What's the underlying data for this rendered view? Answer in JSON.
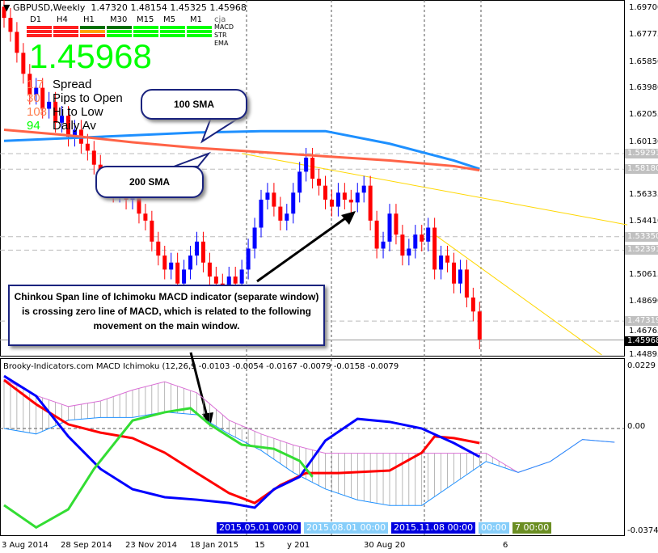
{
  "header": {
    "symbol": "GBPUSD,Weekly",
    "ohlc": "1.47320 1.48154 1.45325 1.45968"
  },
  "panel": {
    "timeframes": [
      "D1",
      "H4",
      "H1",
      "M30",
      "M15",
      "M5",
      "M1"
    ],
    "tag": "cja",
    "rows": [
      {
        "label": "MACD",
        "colors": [
          "#ff2020",
          "#ff2020",
          "#007000",
          "#007000",
          "#00ff00",
          "#00ff00",
          "#00ff00"
        ]
      },
      {
        "label": "STR",
        "colors": [
          "#ff2020",
          "#ff2020",
          "#ffa500",
          "#00ff00",
          "#00ff00",
          "#00ff00",
          "#00ff00"
        ]
      },
      {
        "label": "EMA",
        "colors": [
          "#ff2020",
          "#ff2020",
          "#ff2020",
          "#00ff00",
          "#00ff00",
          "#00ff00",
          "#00ff00"
        ]
      }
    ],
    "price": "1.45968",
    "stats": [
      {
        "value": "1.7",
        "label": "Spread",
        "color": "#ff7f50"
      },
      {
        "value": "30",
        "label": "Pips to Open",
        "color": "#ff7f50"
      },
      {
        "value": "108",
        "label": "Hi to Low",
        "color": "#ff7f50"
      },
      {
        "value": "94",
        "label": "Daily Av",
        "color": "#00ff00"
      }
    ]
  },
  "callouts": {
    "sma100": "100 SMA",
    "sma200": "200 SMA",
    "note": "Chinkou Span line of Ichimoku MACD indicator (separate window) is crossing zero line of MACD, which is related to the following movement on the main window."
  },
  "price_axis": [
    "1.69700",
    "1.67775",
    "1.65850",
    "1.63980",
    "1.62055",
    "1.60130",
    "1.56335",
    "1.54410",
    "1.50615",
    "1.48690",
    "1.46765",
    "1.44895"
  ],
  "price_levels": [
    {
      "label": "1.59291",
      "value": 1.59291
    },
    {
      "label": "1.58180",
      "value": 1.5818
    },
    {
      "label": "1.53350",
      "value": 1.5335
    },
    {
      "label": "1.52391",
      "value": 1.52391
    },
    {
      "label": "1.47319",
      "value": 1.47319
    },
    {
      "label": "1.45968",
      "value": 1.45968,
      "current": true
    }
  ],
  "indicator": {
    "title": "Brooky-Indicators.com MACD Ichimoku (12,26,9 -0.0103 -0.0054 -0.0167 -0.0079 -0.0158 -0.0079",
    "axis": [
      "0.0229",
      "0.00",
      "-0.0374"
    ]
  },
  "time_axis": [
    "3 Aug 2014",
    "28 Sep 2014",
    "23 Nov 2014",
    "18 Jan 2015",
    "15",
    "y 201",
    "30 Aug 20",
    "6"
  ],
  "time_highlights": [
    {
      "label": "2015.05.01 00:00",
      "color": "#0000e0"
    },
    {
      "label": "2015.08.01 00:00",
      "color": "#87cefa"
    },
    {
      "label": "2015.11.08 00:00",
      "color": "#0000e0"
    },
    {
      "label": "00:00",
      "color": "#87cefa"
    },
    {
      "label": "7 00:00",
      "color": "#6b8e23"
    }
  ],
  "colors": {
    "bull": "#0000ff",
    "bear": "#ff0000",
    "sma100": "#1e90ff",
    "sma200": "#ff6347",
    "trend": "#ffd700"
  },
  "chart_data": {
    "closes": [
      1.69,
      1.68,
      1.665,
      1.65,
      1.635,
      1.64,
      1.625,
      1.63,
      1.615,
      1.62,
      1.605,
      1.61,
      1.6,
      1.595,
      1.585,
      1.575,
      1.57,
      1.565,
      1.568,
      1.56,
      1.562,
      1.55,
      1.545,
      1.53,
      1.52,
      1.51,
      1.515,
      1.5,
      1.51,
      1.52,
      1.53,
      1.515,
      1.505,
      1.5,
      1.495,
      1.505,
      1.5,
      1.51,
      1.525,
      1.54,
      1.56,
      1.565,
      1.555,
      1.545,
      1.55,
      1.565,
      1.58,
      1.59,
      1.575,
      1.57,
      1.56,
      1.555,
      1.565,
      1.56,
      1.558,
      1.565,
      1.57,
      1.545,
      1.525,
      1.53,
      1.55,
      1.535,
      1.52,
      1.525,
      1.535,
      1.53,
      1.54,
      1.51,
      1.52,
      1.515,
      1.5,
      1.51,
      1.49,
      1.48,
      1.46
    ],
    "sma200": [
      [
        0,
        1.61
      ],
      [
        10,
        1.606
      ],
      [
        20,
        1.601
      ],
      [
        30,
        1.597
      ],
      [
        40,
        1.594
      ],
      [
        50,
        1.591
      ],
      [
        60,
        1.588
      ],
      [
        70,
        1.584
      ],
      [
        74,
        1.581
      ]
    ],
    "sma100": [
      [
        0,
        1.602
      ],
      [
        10,
        1.604
      ],
      [
        20,
        1.606
      ],
      [
        30,
        1.608
      ],
      [
        40,
        1.609
      ],
      [
        50,
        1.609
      ],
      [
        60,
        1.6
      ],
      [
        70,
        1.588
      ],
      [
        74,
        1.582
      ]
    ],
    "trendlines": [
      [
        [
          37,
          1.593
        ],
        [
          97,
          1.542
        ]
      ],
      [
        [
          67,
          1.535
        ],
        [
          93,
          1.449
        ]
      ]
    ],
    "macd_blue": [
      [
        0,
        0.0191
      ],
      [
        5,
        0.0118
      ],
      [
        10,
        -0.0029
      ],
      [
        15,
        -0.0147
      ],
      [
        20,
        -0.0221
      ],
      [
        25,
        -0.025
      ],
      [
        30,
        -0.0259
      ],
      [
        35,
        -0.0271
      ],
      [
        39,
        -0.0288
      ],
      [
        42,
        -0.0221
      ],
      [
        46,
        -0.0176
      ],
      [
        50,
        -0.0044
      ],
      [
        55,
        0.0035
      ],
      [
        60,
        0.0024
      ],
      [
        65,
        0
      ],
      [
        70,
        -0.0053
      ],
      [
        74,
        -0.0103
      ]
    ],
    "macd_red": [
      [
        0,
        0.0176
      ],
      [
        5,
        0.0088
      ],
      [
        10,
        0.0015
      ],
      [
        15,
        -0.0015
      ],
      [
        20,
        -0.0035
      ],
      [
        25,
        -0.0088
      ],
      [
        30,
        -0.0162
      ],
      [
        35,
        -0.0235
      ],
      [
        39,
        -0.0271
      ],
      [
        43,
        -0.0206
      ],
      [
        47,
        -0.0162
      ],
      [
        52,
        -0.0162
      ],
      [
        60,
        -0.0153
      ],
      [
        65,
        -0.0088
      ],
      [
        67,
        -0.0029
      ],
      [
        70,
        -0.0035
      ],
      [
        74,
        -0.0053
      ]
    ],
    "chinkou": [
      [
        0,
        -0.0279
      ],
      [
        5,
        -0.036
      ],
      [
        10,
        -0.0294
      ],
      [
        14,
        -0.0147
      ],
      [
        17,
        -0.0059
      ],
      [
        20,
        0.0029
      ],
      [
        25,
        0.0059
      ],
      [
        29,
        0.0074
      ],
      [
        32,
        0.0015
      ],
      [
        37,
        -0.0059
      ],
      [
        42,
        -0.0074
      ],
      [
        46,
        -0.0118
      ],
      [
        48,
        -0.0176
      ]
    ],
    "cloud_top": [
      [
        0,
        0.018
      ],
      [
        5,
        0.012
      ],
      [
        10,
        0.008
      ],
      [
        15,
        0.01
      ],
      [
        20,
        0.014
      ],
      [
        25,
        0.017
      ],
      [
        30,
        0.013
      ],
      [
        35,
        0.003
      ],
      [
        40,
        -0.002
      ],
      [
        45,
        -0.006
      ],
      [
        50,
        -0.009
      ],
      [
        55,
        -0.009
      ],
      [
        60,
        -0.009
      ],
      [
        65,
        -0.009
      ],
      [
        70,
        -0.009
      ],
      [
        75,
        -0.009
      ],
      [
        80,
        -0.016
      ],
      [
        85,
        -0.012
      ],
      [
        90,
        -0.004
      ],
      [
        95,
        -0.005
      ]
    ],
    "cloud_bottom": [
      [
        0,
        0.0
      ],
      [
        5,
        -0.002
      ],
      [
        10,
        0.003
      ],
      [
        15,
        0.004
      ],
      [
        20,
        0.004
      ],
      [
        25,
        0.006
      ],
      [
        30,
        0.005
      ],
      [
        35,
        -0.002
      ],
      [
        40,
        -0.008
      ],
      [
        45,
        -0.016
      ],
      [
        50,
        -0.022
      ],
      [
        55,
        -0.026
      ],
      [
        60,
        -0.028
      ],
      [
        65,
        -0.028
      ],
      [
        70,
        -0.02
      ],
      [
        75,
        -0.012
      ],
      [
        80,
        -0.016
      ],
      [
        85,
        -0.012
      ],
      [
        90,
        -0.004
      ],
      [
        95,
        -0.005
      ]
    ]
  }
}
